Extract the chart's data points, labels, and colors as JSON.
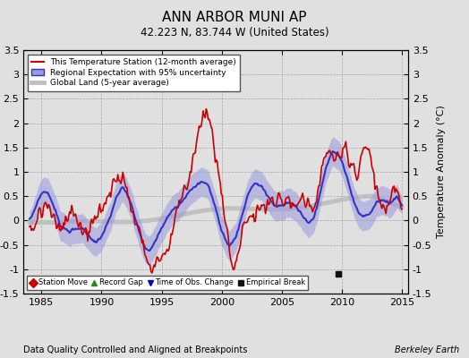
{
  "title": "ANN ARBOR MUNI AP",
  "subtitle": "42.223 N, 83.744 W (United States)",
  "xlabel_left": "Data Quality Controlled and Aligned at Breakpoints",
  "xlabel_right": "Berkeley Earth",
  "ylabel": "Temperature Anomaly (°C)",
  "xlim": [
    1983.5,
    2015.5
  ],
  "ylim": [
    -1.5,
    3.5
  ],
  "yticks": [
    -1.5,
    -1.0,
    -0.5,
    0.0,
    0.5,
    1.0,
    1.5,
    2.0,
    2.5,
    3.0,
    3.5
  ],
  "xticks": [
    1985,
    1990,
    1995,
    2000,
    2005,
    2010,
    2015
  ],
  "bg_color": "#e0e0e0",
  "plot_bg_color": "#e0e0e0",
  "regional_color": "#3333cc",
  "regional_fill_color": "#9999dd",
  "station_color": "#cc0000",
  "global_color": "#c0c0c0",
  "global_linewidth": 3.5,
  "regional_linewidth": 1.5,
  "station_linewidth": 1.2,
  "legend_marker_station_move": "#cc0000",
  "legend_marker_record_gap": "#228B22",
  "legend_marker_obs_change": "#0000cc",
  "legend_marker_empirical": "#111111",
  "empirical_break_year": 2009.7,
  "empirical_break_y": -1.1
}
